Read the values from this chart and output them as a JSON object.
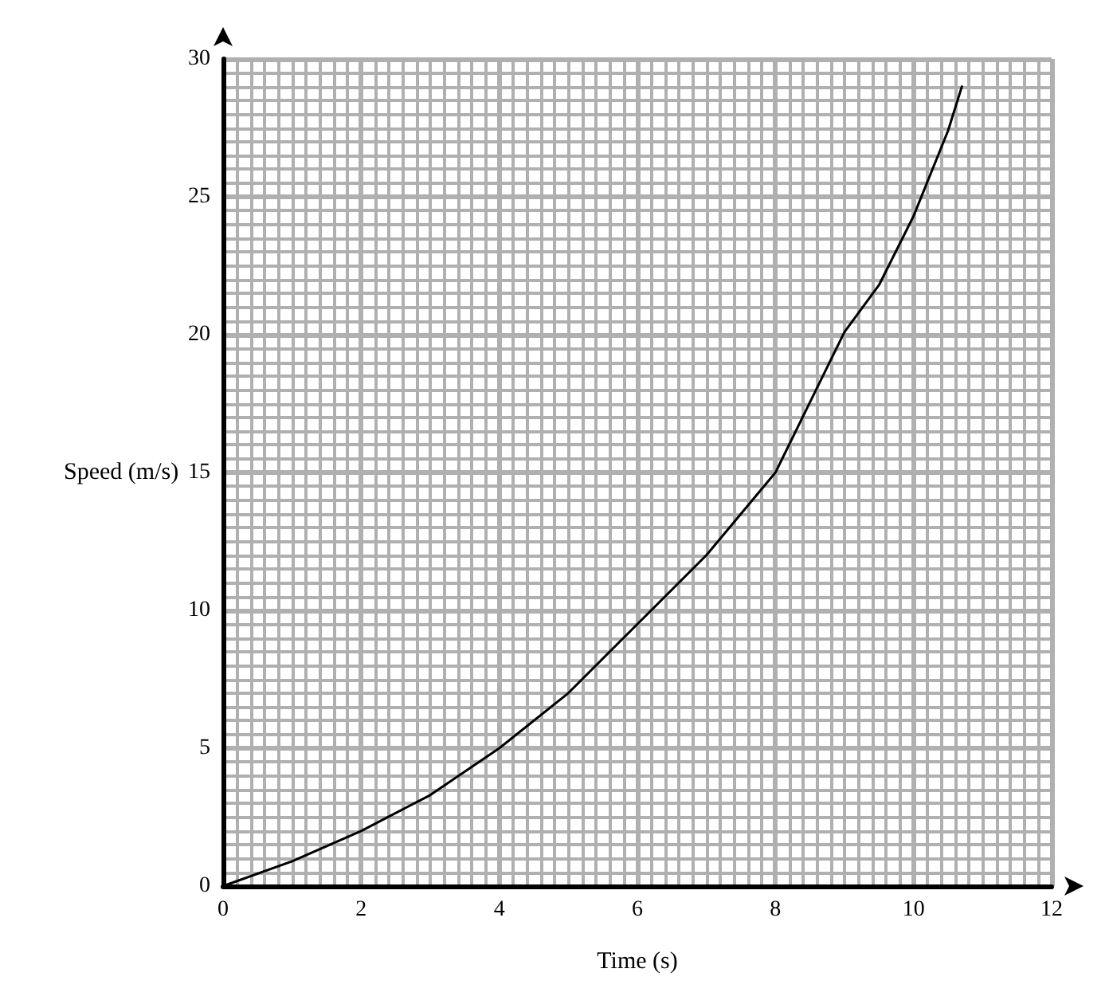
{
  "chart_data": {
    "type": "line",
    "xlabel": "Time (s)",
    "ylabel": "Speed (m/s)",
    "x": [
      0,
      1,
      2,
      3,
      4,
      5,
      6,
      7,
      8,
      9,
      9.5,
      10,
      10.5,
      10.7
    ],
    "series": [
      {
        "color": "#000000",
        "values": [
          0,
          0.9,
          2,
          3.3,
          5,
          7,
          9.5,
          12,
          15,
          20.1,
          21.8,
          24.3,
          27.4,
          29
        ]
      }
    ],
    "xlim": [
      0,
      12
    ],
    "xticks": [
      0,
      2,
      4,
      6,
      8,
      10,
      12
    ],
    "ylim": [
      0,
      30
    ],
    "yticks": [
      0,
      5,
      10,
      15,
      20,
      25,
      30
    ],
    "grid": true,
    "marker": "none",
    "line_style": "solid"
  }
}
